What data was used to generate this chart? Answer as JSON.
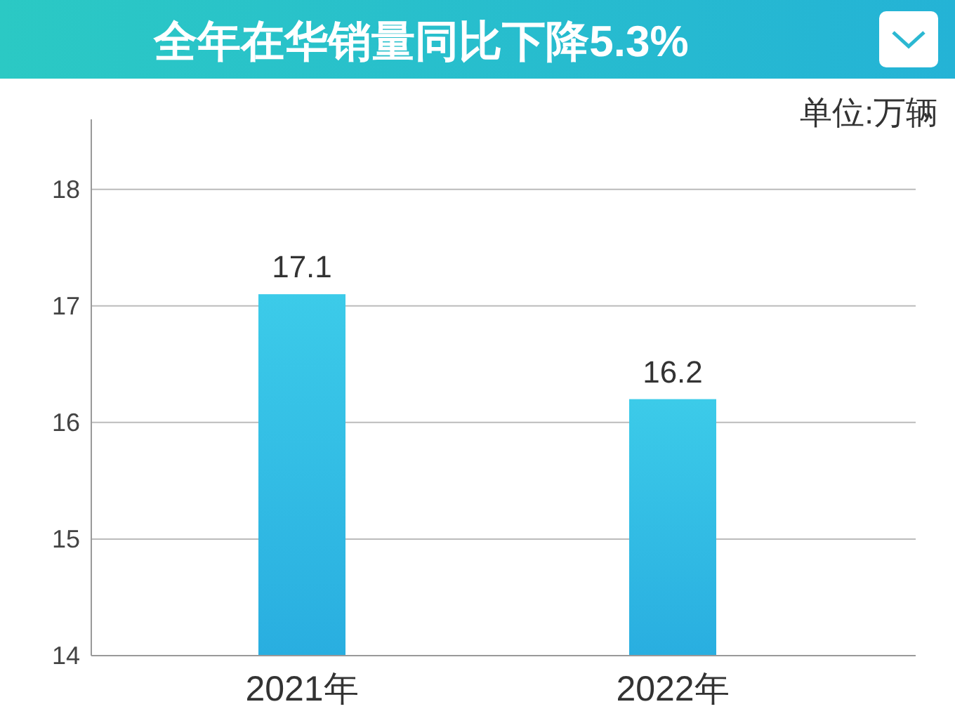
{
  "chart_data": {
    "type": "bar",
    "title": "全年在华销量同比下降5.3%",
    "annotations": [
      "单位:万辆"
    ],
    "categories": [
      "2021年",
      "2022年"
    ],
    "values": [
      17.1,
      16.2
    ],
    "color": "#3ccbe9",
    "ylim": [
      14,
      18.6
    ],
    "yticks": [
      14,
      15,
      16,
      17,
      18
    ],
    "grid": "y",
    "data_labels": true
  }
}
